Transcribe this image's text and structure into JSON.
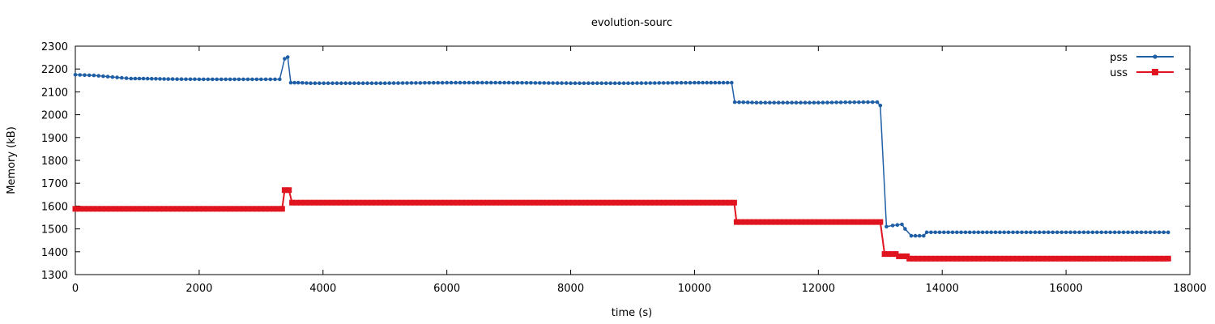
{
  "chart_data": {
    "type": "line",
    "title": "evolution-sourc",
    "xlabel": "time (s)",
    "ylabel": "Memory (kB)",
    "xlim": [
      0,
      18000
    ],
    "ylim": [
      1300,
      2300
    ],
    "xticks": [
      0,
      2000,
      4000,
      6000,
      8000,
      10000,
      12000,
      14000,
      16000,
      18000
    ],
    "yticks": [
      1300,
      1400,
      1500,
      1600,
      1700,
      1800,
      1900,
      2000,
      2100,
      2200,
      2300
    ],
    "grid": false,
    "legend": "top-right",
    "colors": {
      "pss": "#1f5fa6",
      "uss": "#e0141e"
    },
    "series": [
      {
        "name": "pss",
        "marker": "circle",
        "points": [
          [
            0,
            2175
          ],
          [
            300,
            2172
          ],
          [
            600,
            2165
          ],
          [
            900,
            2158
          ],
          [
            1100,
            2158
          ],
          [
            1500,
            2156
          ],
          [
            2000,
            2155
          ],
          [
            2500,
            2155
          ],
          [
            3000,
            2155
          ],
          [
            3300,
            2155
          ],
          [
            3380,
            2245
          ],
          [
            3430,
            2252
          ],
          [
            3480,
            2140
          ],
          [
            3600,
            2140
          ],
          [
            3800,
            2138
          ],
          [
            5000,
            2138
          ],
          [
            6000,
            2140
          ],
          [
            7000,
            2140
          ],
          [
            8000,
            2138
          ],
          [
            9000,
            2138
          ],
          [
            10000,
            2140
          ],
          [
            10600,
            2140
          ],
          [
            10650,
            2055
          ],
          [
            11000,
            2053
          ],
          [
            12000,
            2053
          ],
          [
            12800,
            2055
          ],
          [
            12950,
            2055
          ],
          [
            13000,
            2040
          ],
          [
            13100,
            1510
          ],
          [
            13200,
            1515
          ],
          [
            13350,
            1520
          ],
          [
            13400,
            1500
          ],
          [
            13500,
            1470
          ],
          [
            13700,
            1470
          ],
          [
            13750,
            1485
          ],
          [
            15000,
            1485
          ],
          [
            16000,
            1485
          ],
          [
            17000,
            1485
          ],
          [
            17650,
            1485
          ]
        ]
      },
      {
        "name": "uss",
        "marker": "square",
        "points": [
          [
            0,
            1588
          ],
          [
            1000,
            1588
          ],
          [
            2000,
            1588
          ],
          [
            3000,
            1588
          ],
          [
            3340,
            1588
          ],
          [
            3380,
            1670
          ],
          [
            3450,
            1670
          ],
          [
            3500,
            1615
          ],
          [
            5000,
            1615
          ],
          [
            7000,
            1615
          ],
          [
            9000,
            1615
          ],
          [
            10640,
            1615
          ],
          [
            10680,
            1530
          ],
          [
            12000,
            1530
          ],
          [
            13000,
            1530
          ],
          [
            13070,
            1390
          ],
          [
            13250,
            1390
          ],
          [
            13300,
            1380
          ],
          [
            13430,
            1380
          ],
          [
            13470,
            1370
          ],
          [
            15000,
            1370
          ],
          [
            17000,
            1370
          ],
          [
            17650,
            1370
          ]
        ]
      }
    ]
  }
}
